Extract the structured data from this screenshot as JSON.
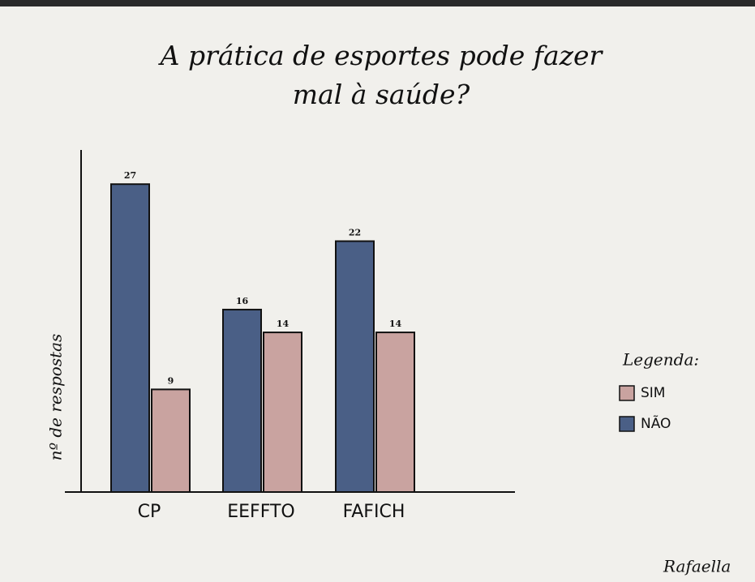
{
  "chart_data": {
    "type": "bar",
    "title": "A prática de esportes pode fazer mal à saúde?",
    "y_label": "nº de respostas",
    "categories": [
      "CP",
      "EEFFTO",
      "FAFICH"
    ],
    "series": [
      {
        "name": "SIM",
        "color": "#c9a3a0",
        "values": [
          9,
          14,
          14
        ]
      },
      {
        "name": "NÃO",
        "color": "#4a5f86",
        "values": [
          27,
          16,
          22
        ]
      }
    ],
    "ylim": [
      0,
      30
    ],
    "legend_title": "Legenda:",
    "legend_position": "right",
    "author": "Rafaella"
  }
}
